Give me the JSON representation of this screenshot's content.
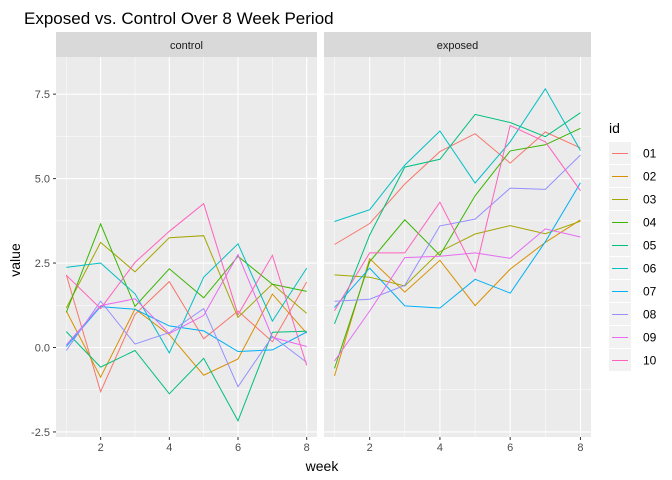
{
  "chart_data": {
    "type": "line",
    "title": "Exposed vs. Control Over 8 Week Period",
    "xlabel": "week",
    "ylabel": "value",
    "xlim": [
      0.7,
      8.3
    ],
    "ylim": [
      -2.65,
      8.6
    ],
    "x_ticks": [
      2,
      4,
      6,
      8
    ],
    "y_ticks": [
      -2.5,
      0.0,
      2.5,
      5.0,
      7.5
    ],
    "y_tick_labels": [
      "-2.5",
      "0.0",
      "2.5",
      "5.0",
      "7.5"
    ],
    "grid": true,
    "legend": {
      "title": "id",
      "placement": "right"
    },
    "x": [
      1,
      2,
      3,
      4,
      5,
      6,
      7,
      8
    ],
    "panels": [
      {
        "label": "control",
        "series": [
          {
            "name": "01",
            "color": "#F8766D",
            "values": [
              2.15,
              -1.31,
              0.98,
              1.95,
              0.26,
              1.08,
              0.17,
              1.94
            ]
          },
          {
            "name": "02",
            "color": "#D89000",
            "values": [
              1.08,
              -0.88,
              1.14,
              0.38,
              -0.82,
              -0.34,
              1.58,
              0.42
            ]
          },
          {
            "name": "03",
            "color": "#A3A500",
            "values": [
              1.17,
              3.11,
              2.24,
              3.25,
              3.31,
              0.89,
              1.88,
              1.01
            ]
          },
          {
            "name": "04",
            "color": "#39B600",
            "values": [
              1.04,
              3.66,
              1.22,
              2.33,
              1.47,
              2.7,
              1.87,
              1.66
            ]
          },
          {
            "name": "05",
            "color": "#00BF7D",
            "values": [
              0.47,
              -0.58,
              -0.09,
              -1.37,
              -0.32,
              -2.17,
              0.45,
              0.48
            ]
          },
          {
            "name": "06",
            "color": "#00BFC4",
            "values": [
              2.37,
              2.5,
              1.59,
              -0.16,
              2.08,
              3.07,
              0.78,
              2.35
            ]
          },
          {
            "name": "07",
            "color": "#00B0F6",
            "values": [
              0.03,
              1.21,
              1.13,
              0.64,
              0.49,
              -0.12,
              -0.07,
              0.46
            ]
          },
          {
            "name": "08",
            "color": "#9590FF",
            "values": [
              -0.09,
              1.37,
              0.1,
              0.44,
              1.15,
              -1.16,
              0.33,
              -0.44
            ]
          },
          {
            "name": "09",
            "color": "#E76BF3",
            "values": [
              0.08,
              1.24,
              1.44,
              0.41,
              0.95,
              2.75,
              0.3,
              0.03
            ]
          },
          {
            "name": "10",
            "color": "#FF62BC",
            "values": [
              2.14,
              1.15,
              2.52,
              3.44,
              4.26,
              0.97,
              2.73,
              -0.53
            ]
          }
        ]
      },
      {
        "label": "exposed",
        "series": [
          {
            "name": "01",
            "color": "#F8766D",
            "values": [
              3.05,
              3.67,
              4.84,
              5.8,
              6.33,
              5.46,
              6.38,
              5.91
            ]
          },
          {
            "name": "02",
            "color": "#D89000",
            "values": [
              -0.84,
              2.63,
              1.64,
              2.58,
              1.24,
              2.32,
              3.11,
              3.78
            ]
          },
          {
            "name": "03",
            "color": "#A3A500",
            "values": [
              2.15,
              2.08,
              1.82,
              2.84,
              3.36,
              3.61,
              3.37,
              3.74
            ]
          },
          {
            "name": "04",
            "color": "#39B600",
            "values": [
              -0.62,
              2.54,
              3.78,
              2.73,
              4.49,
              5.82,
              6.0,
              6.49
            ]
          },
          {
            "name": "05",
            "color": "#00BF7D",
            "values": [
              0.7,
              3.33,
              5.34,
              5.57,
              6.9,
              6.66,
              6.24,
              6.95
            ]
          },
          {
            "name": "06",
            "color": "#00BFC4",
            "values": [
              3.73,
              4.08,
              5.4,
              6.41,
              4.87,
              6.09,
              7.66,
              5.83
            ]
          },
          {
            "name": "07",
            "color": "#00B0F6",
            "values": [
              1.18,
              2.35,
              1.23,
              1.17,
              2.02,
              1.61,
              3.13,
              4.88
            ]
          },
          {
            "name": "08",
            "color": "#9590FF",
            "values": [
              1.37,
              1.43,
              1.84,
              3.6,
              3.8,
              4.72,
              4.68,
              5.7
            ]
          },
          {
            "name": "09",
            "color": "#E76BF3",
            "values": [
              -0.4,
              1.08,
              2.66,
              2.7,
              2.8,
              2.64,
              3.51,
              3.27
            ]
          },
          {
            "name": "10",
            "color": "#FF62BC",
            "values": [
              1.09,
              2.8,
              2.8,
              4.3,
              2.25,
              6.57,
              6.09,
              4.64
            ]
          }
        ]
      }
    ]
  }
}
